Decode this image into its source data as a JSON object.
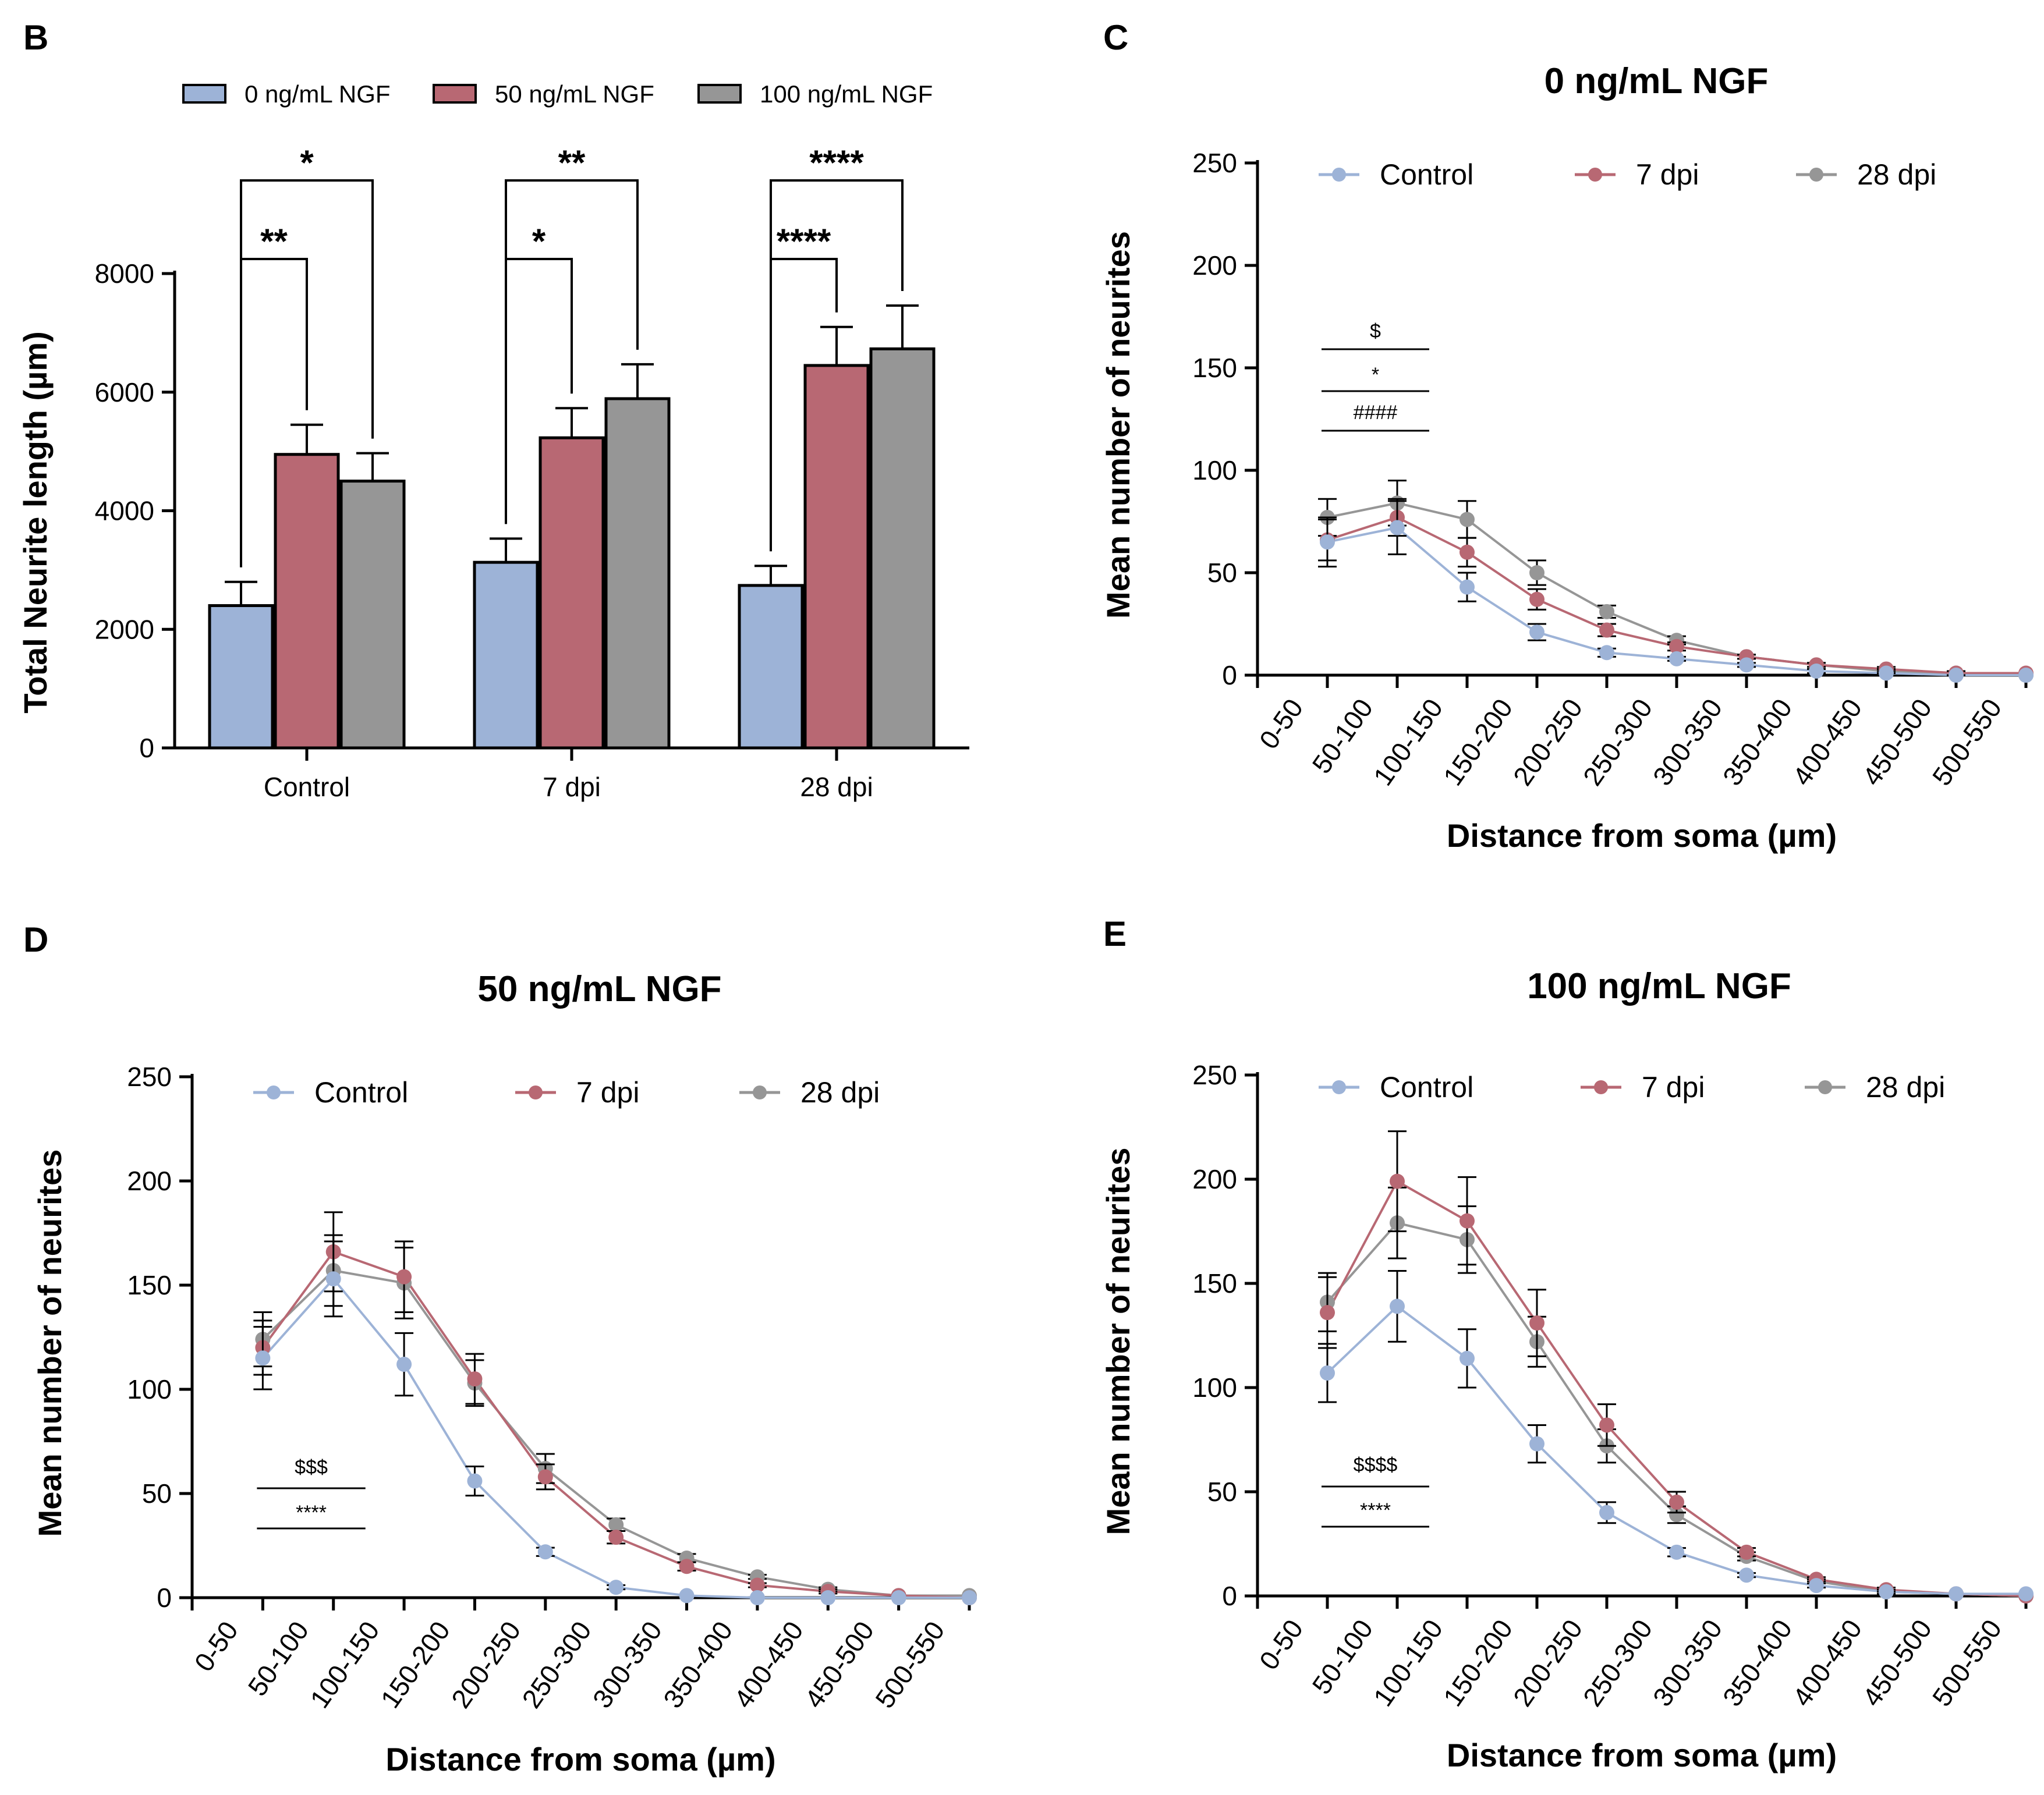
{
  "colors": {
    "control": "#9db3d7",
    "dpi7": "#b86873",
    "dpi28": "#969696",
    "black": "#000000"
  },
  "chart_data": [
    {
      "panel": "B",
      "type": "bar",
      "title": "",
      "ylabel": "Total Neurite length (µm)",
      "categories": [
        "Control",
        "7 dpi",
        "28 dpi"
      ],
      "yticks": [
        0,
        2000,
        4000,
        6000,
        8000
      ],
      "ylim": [
        0,
        8000
      ],
      "series": [
        {
          "name": "0 ng/mL NGF",
          "color": "#9db3d7",
          "values": [
            2400,
            3130,
            2740
          ],
          "errors": [
            400,
            400,
            330
          ]
        },
        {
          "name": "50 ng/mL NGF",
          "color": "#b86873",
          "values": [
            4950,
            5230,
            6450
          ],
          "errors": [
            500,
            500,
            650
          ]
        },
        {
          "name": "100 ng/mL NGF",
          "color": "#969696",
          "values": [
            4500,
            5890,
            6730
          ],
          "errors": [
            470,
            580,
            730
          ]
        }
      ],
      "significance": [
        {
          "group": 0,
          "compare": "0 vs 50",
          "label": "**"
        },
        {
          "group": 0,
          "compare": "0 vs 100",
          "label": "*"
        },
        {
          "group": 1,
          "compare": "0 vs 50",
          "label": "*"
        },
        {
          "group": 1,
          "compare": "0 vs 100",
          "label": "**"
        },
        {
          "group": 2,
          "compare": "0 vs 50",
          "label": "****"
        },
        {
          "group": 2,
          "compare": "0 vs 100",
          "label": "****"
        }
      ]
    },
    {
      "panel": "C",
      "type": "line",
      "title": "0 ng/mL NGF",
      "xlabel": "Distance from soma (µm)",
      "ylabel": "Mean number of neurites",
      "categories": [
        "0-50",
        "50-100",
        "100-150",
        "150-200",
        "200-250",
        "250-300",
        "300-350",
        "350-400",
        "400-450",
        "450-500",
        "500-550"
      ],
      "yticks": [
        0,
        50,
        100,
        150,
        200,
        250
      ],
      "ylim": [
        0,
        250
      ],
      "series": [
        {
          "name": "Control",
          "color": "#9db3d7",
          "values": [
            65,
            72,
            43,
            21,
            11,
            8,
            5,
            2,
            1,
            0,
            0
          ],
          "errors": [
            12,
            13,
            7,
            4,
            2,
            1,
            1,
            1,
            0,
            0,
            0
          ]
        },
        {
          "name": "7 dpi",
          "color": "#b86873",
          "values": [
            66,
            77,
            60,
            37,
            22,
            14,
            9,
            5,
            3,
            1,
            1
          ],
          "errors": [
            10,
            9,
            7,
            5,
            3,
            2,
            1,
            1,
            1,
            1,
            0
          ]
        },
        {
          "name": "28 dpi",
          "color": "#969696",
          "values": [
            77,
            84,
            76,
            50,
            31,
            17,
            9,
            5,
            2,
            1,
            0
          ],
          "errors": [
            9,
            11,
            9,
            6,
            3,
            2,
            1,
            1,
            1,
            0,
            0
          ]
        }
      ],
      "annotations": [
        "$",
        "*",
        "####"
      ]
    },
    {
      "panel": "D",
      "type": "line",
      "title": "50 ng/mL NGF",
      "xlabel": "Distance from soma (µm)",
      "ylabel": "Mean number of neurites",
      "categories": [
        "0-50",
        "50-100",
        "100-150",
        "150-200",
        "200-250",
        "250-300",
        "300-350",
        "350-400",
        "400-450",
        "450-500",
        "500-550"
      ],
      "yticks": [
        0,
        50,
        100,
        150,
        200,
        250
      ],
      "ylim": [
        0,
        250
      ],
      "series": [
        {
          "name": "Control",
          "color": "#9db3d7",
          "values": [
            115,
            153,
            112,
            56,
            22,
            5,
            1,
            0,
            0,
            0,
            0
          ],
          "errors": [
            15,
            18,
            15,
            7,
            2,
            1,
            0,
            0,
            0,
            0,
            0
          ]
        },
        {
          "name": "7 dpi",
          "color": "#b86873",
          "values": [
            120,
            166,
            154,
            105,
            58,
            29,
            15,
            6,
            3,
            1,
            0
          ],
          "errors": [
            13,
            19,
            17,
            12,
            6,
            3,
            2,
            1,
            1,
            0,
            0
          ]
        },
        {
          "name": "28 dpi",
          "color": "#969696",
          "values": [
            124,
            157,
            151,
            103,
            62,
            35,
            19,
            10,
            4,
            1,
            1
          ],
          "errors": [
            13,
            17,
            17,
            11,
            7,
            3,
            2,
            1,
            1,
            0,
            0
          ]
        }
      ],
      "annotations": [
        "$$$",
        "****"
      ]
    },
    {
      "panel": "E",
      "type": "line",
      "title": "100 ng/mL NGF",
      "xlabel": "Distance from soma (µm)",
      "ylabel": "Mean number of neurites",
      "categories": [
        "0-50",
        "50-100",
        "100-150",
        "150-200",
        "200-250",
        "250-300",
        "300-350",
        "350-400",
        "400-450",
        "450-500",
        "500-550"
      ],
      "yticks": [
        0,
        50,
        100,
        150,
        200,
        250
      ],
      "ylim": [
        0,
        250
      ],
      "series": [
        {
          "name": "Control",
          "color": "#9db3d7",
          "values": [
            107,
            139,
            114,
            73,
            40,
            21,
            10,
            5,
            2,
            1,
            1
          ],
          "errors": [
            14,
            17,
            14,
            9,
            5,
            2,
            1,
            1,
            0,
            0,
            0
          ]
        },
        {
          "name": "7 dpi",
          "color": "#b86873",
          "values": [
            136,
            199,
            180,
            131,
            82,
            45,
            21,
            8,
            3,
            1,
            0
          ],
          "errors": [
            17,
            24,
            21,
            16,
            10,
            5,
            2,
            1,
            1,
            0,
            0
          ]
        },
        {
          "name": "28 dpi",
          "color": "#969696",
          "values": [
            141,
            179,
            171,
            122,
            72,
            39,
            19,
            7,
            2,
            1,
            0
          ],
          "errors": [
            14,
            17,
            16,
            12,
            8,
            4,
            2,
            1,
            1,
            0,
            0
          ]
        }
      ],
      "annotations": [
        "$$$$",
        "****"
      ]
    }
  ]
}
